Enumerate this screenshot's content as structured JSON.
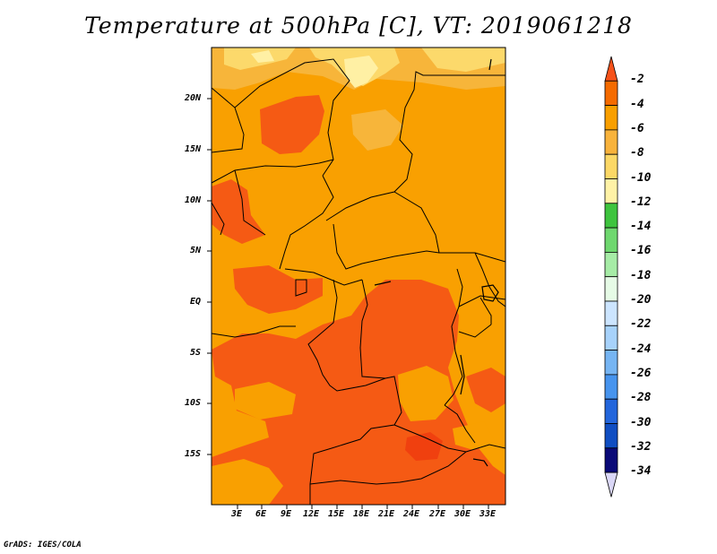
{
  "title": "Temperature at 500hPa [C], VT: 2019061218",
  "credit": "GrADS: IGES/COLA",
  "map": {
    "lat_ticks": [
      "20N",
      "15N",
      "10N",
      "5N",
      "EQ",
      "5S",
      "10S",
      "15S"
    ],
    "lon_ticks": [
      "3E",
      "6E",
      "9E",
      "12E",
      "15E",
      "18E",
      "21E",
      "24E",
      "27E",
      "30E",
      "33E"
    ],
    "fill_colors": {
      "t_-2_-4": "#f55a14",
      "t_-4_-6": "#f9a001",
      "t_-6_-8": "#f7b53a",
      "t_-8_-10": "#fcd96b",
      "t_-10_-12": "#fff0a4"
    }
  },
  "colorbar": {
    "labels": [
      "-2",
      "-4",
      "-6",
      "-8",
      "-10",
      "-12",
      "-14",
      "-16",
      "-18",
      "-20",
      "-22",
      "-24",
      "-26",
      "-28",
      "-30",
      "-32",
      "-34"
    ],
    "colors": [
      "#f6521a",
      "#f56b00",
      "#f99f00",
      "#f8b33c",
      "#fcd866",
      "#fff2a6",
      "#3ec43e",
      "#6fd86f",
      "#a6eca6",
      "#e6fbe6",
      "#cce5ff",
      "#a7d2fb",
      "#76b5f3",
      "#4794ee",
      "#2366dc",
      "#104ec2",
      "#0a0a78",
      "#dad7f7"
    ]
  }
}
